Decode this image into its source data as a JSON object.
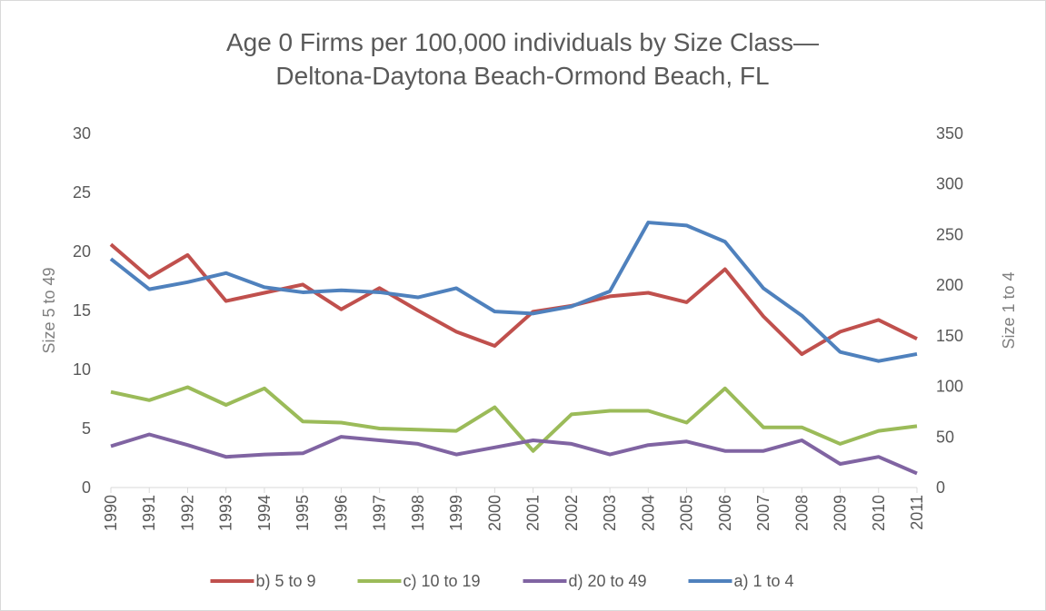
{
  "chart_data": {
    "type": "line",
    "title": [
      "Age 0 Firms per 100,000 individuals by Size Class—",
      "Deltona-Daytona Beach-Ormond Beach, FL"
    ],
    "y_label": "Size 5 to 49",
    "y2_label": "Size 1 to 4",
    "categories": [
      "1990",
      "1991",
      "1992",
      "1993",
      "1994",
      "1995",
      "1996",
      "1997",
      "1998",
      "1999",
      "2000",
      "2001",
      "2002",
      "2003",
      "2004",
      "2005",
      "2006",
      "2007",
      "2008",
      "2009",
      "2010",
      "2011"
    ],
    "ylim": [
      0,
      30
    ],
    "yticks": [
      0,
      5,
      10,
      15,
      20,
      25,
      30
    ],
    "y2lim": [
      0,
      350
    ],
    "y2ticks": [
      0,
      50,
      100,
      150,
      200,
      250,
      300,
      350
    ],
    "legend": "bottom",
    "series": [
      {
        "name": "b) 5 to 9",
        "color": "#c0504d",
        "values": [
          20.6,
          17.8,
          19.7,
          15.8,
          16.5,
          17.2,
          15.1,
          16.9,
          15.0,
          13.2,
          12.0,
          14.9,
          15.4,
          16.2,
          16.5,
          15.7,
          18.5,
          14.5,
          11.3,
          13.2,
          14.2,
          12.6
        ]
      },
      {
        "name": "c) 10 to 19",
        "color": "#9bbb59",
        "values": [
          8.1,
          7.4,
          8.5,
          7.0,
          8.4,
          5.6,
          5.5,
          5.0,
          4.9,
          4.8,
          6.8,
          3.1,
          6.2,
          6.5,
          6.5,
          5.5,
          8.4,
          5.1,
          5.1,
          3.7,
          4.8,
          5.2
        ]
      },
      {
        "name": "d) 20 to 49",
        "color": "#8064a2",
        "values": [
          3.5,
          4.5,
          3.6,
          2.6,
          2.8,
          2.9,
          4.3,
          4.0,
          3.7,
          2.8,
          3.4,
          4.0,
          3.7,
          2.8,
          3.6,
          3.9,
          3.1,
          3.1,
          4.0,
          2.0,
          2.6,
          1.2
        ]
      },
      {
        "name": "a) 1 to 4",
        "color": "#4f81bd",
        "axis": "y2",
        "values": [
          226,
          196,
          203,
          212,
          198,
          193,
          195,
          193,
          188,
          197,
          174,
          172,
          179,
          194,
          262,
          259,
          243,
          197,
          170,
          134,
          125,
          132
        ]
      }
    ]
  }
}
